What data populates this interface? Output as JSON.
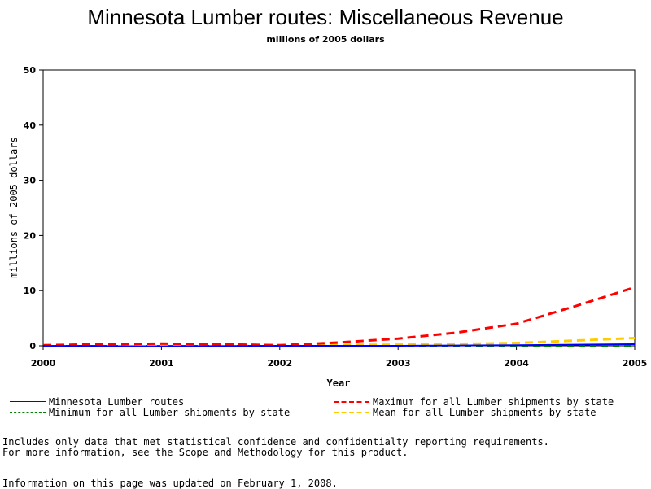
{
  "chart_data": {
    "type": "line",
    "title": "Minnesota Lumber routes: Miscellaneous Revenue",
    "subtitle": "millions of 2005 dollars",
    "xlabel": "Year",
    "ylabel": "millions of 2005 dollars",
    "xlim": [
      2000,
      2005
    ],
    "ylim": [
      0,
      50
    ],
    "xticks": [
      2000,
      2001,
      2002,
      2003,
      2004,
      2005
    ],
    "yticks": [
      0,
      10,
      20,
      30,
      40,
      50
    ],
    "grid": false,
    "legend_position": "bottom",
    "series": [
      {
        "name": "Minnesota Lumber routes",
        "color": "#0000ff",
        "dash": "solid",
        "x": [
          2000,
          2001,
          2002,
          2003,
          2004,
          2005
        ],
        "y": [
          0.0,
          -0.1,
          0.0,
          0.0,
          0.1,
          0.3
        ]
      },
      {
        "name": "Maximum for all Lumber shipments by state",
        "color": "#ff0000",
        "dash": "dashed",
        "x": [
          2000,
          2000.5,
          2001,
          2001.5,
          2002,
          2002.5,
          2003,
          2003.5,
          2004,
          2004.5,
          2005
        ],
        "y": [
          0.1,
          0.3,
          0.4,
          0.3,
          0.1,
          0.6,
          1.3,
          2.4,
          4.0,
          7.2,
          10.6
        ]
      },
      {
        "name": "Minimum for all Lumber shipments by state",
        "color": "#008000",
        "dash": "dashed",
        "x": [
          2000,
          2001,
          2002,
          2003,
          2004,
          2005
        ],
        "y": [
          0.0,
          0.0,
          0.0,
          0.0,
          0.0,
          0.0
        ]
      },
      {
        "name": "Mean for all Lumber shipments by state",
        "color": "#ffcc00",
        "dash": "dashed",
        "x": [
          2000,
          2001,
          2002,
          2003,
          2004,
          2005
        ],
        "y": [
          0.0,
          0.1,
          0.1,
          0.2,
          0.5,
          1.4
        ]
      }
    ]
  },
  "notes": {
    "line1": "Includes only data that met statistical confidence and confidentialty reporting requirements.",
    "line2": "For more information, see the Scope and Methodology for this product.",
    "updated": "Information on this page was updated on February 1, 2008."
  }
}
